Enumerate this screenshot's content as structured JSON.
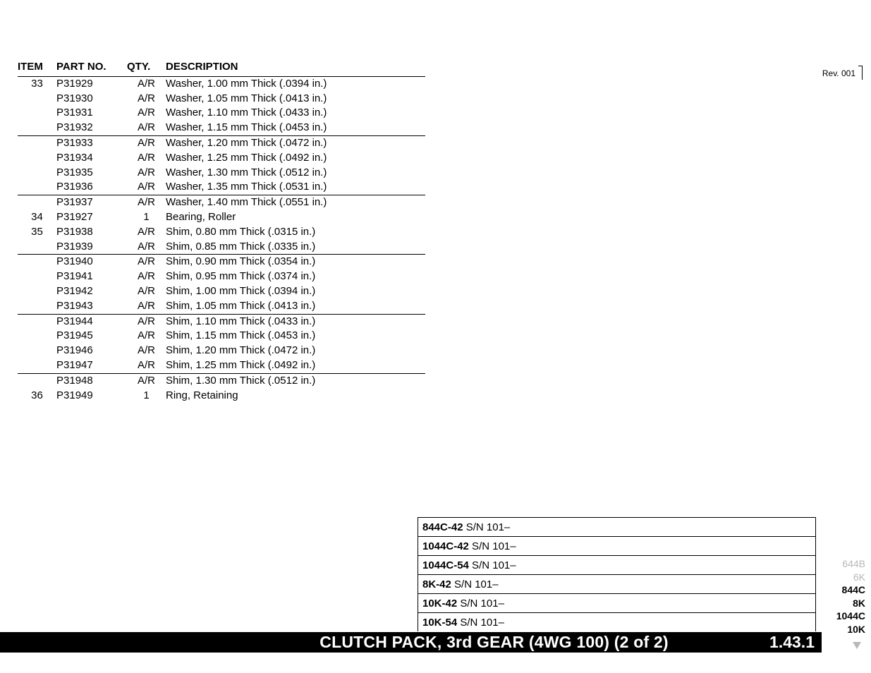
{
  "columns": {
    "item": "ITEM",
    "part": "PART NO.",
    "qty": "QTY.",
    "desc": "DESCRIPTION"
  },
  "revision": "Rev. 001",
  "groups": [
    {
      "rows": [
        {
          "item": "33",
          "part": "P31929",
          "qty": "A/R",
          "desc": "Washer, 1.00 mm Thick   (.0394 in.)"
        },
        {
          "item": "",
          "part": "P31930",
          "qty": "A/R",
          "desc": "Washer, 1.05 mm Thick   (.0413 in.)"
        },
        {
          "item": "",
          "part": "P31931",
          "qty": "A/R",
          "desc": "Washer, 1.10 mm Thick   (.0433 in.)"
        },
        {
          "item": "",
          "part": "P31932",
          "qty": "A/R",
          "desc": "Washer, 1.15 mm Thick   (.0453 in.)"
        }
      ]
    },
    {
      "rows": [
        {
          "item": "",
          "part": "P31933",
          "qty": "A/R",
          "desc": "Washer, 1.20 mm Thick   (.0472 in.)"
        },
        {
          "item": "",
          "part": "P31934",
          "qty": "A/R",
          "desc": "Washer, 1.25 mm Thick   (.0492 in.)"
        },
        {
          "item": "",
          "part": "P31935",
          "qty": "A/R",
          "desc": "Washer, 1.30 mm Thick   (.0512 in.)"
        },
        {
          "item": "",
          "part": "P31936",
          "qty": "A/R",
          "desc": "Washer, 1.35 mm Thick   (.0531 in.)"
        }
      ]
    },
    {
      "rows": [
        {
          "item": "",
          "part": "P31937",
          "qty": "A/R",
          "desc": "Washer, 1.40 mm Thick   (.0551 in.)"
        },
        {
          "item": "34",
          "part": "P31927",
          "qty": "1",
          "desc": "Bearing, Roller"
        },
        {
          "item": "35",
          "part": "P31938",
          "qty": "A/R",
          "desc": "Shim, 0.80 mm Thick   (.0315 in.)"
        },
        {
          "item": "",
          "part": "P31939",
          "qty": "A/R",
          "desc": "Shim, 0.85 mm Thick   (.0335 in.)"
        }
      ]
    },
    {
      "rows": [
        {
          "item": "",
          "part": "P31940",
          "qty": "A/R",
          "desc": "Shim, 0.90 mm Thick   (.0354 in.)"
        },
        {
          "item": "",
          "part": "P31941",
          "qty": "A/R",
          "desc": "Shim, 0.95 mm Thick   (.0374 in.)"
        },
        {
          "item": "",
          "part": "P31942",
          "qty": "A/R",
          "desc": "Shim, 1.00 mm Thick   (.0394 in.)"
        },
        {
          "item": "",
          "part": "P31943",
          "qty": "A/R",
          "desc": "Shim, 1.05 mm Thick   (.0413 in.)"
        }
      ]
    },
    {
      "rows": [
        {
          "item": "",
          "part": "P31944",
          "qty": "A/R",
          "desc": "Shim, 1.10 mm Thick   (.0433 in.)"
        },
        {
          "item": "",
          "part": "P31945",
          "qty": "A/R",
          "desc": "Shim, 1.15 mm Thick   (.0453 in.)"
        },
        {
          "item": "",
          "part": "P31946",
          "qty": "A/R",
          "desc": "Shim, 1.20 mm Thick   (.0472 in.)"
        },
        {
          "item": "",
          "part": "P31947",
          "qty": "A/R",
          "desc": "Shim, 1.25 mm Thick   (.0492 in.)"
        }
      ]
    },
    {
      "rows": [
        {
          "item": "",
          "part": "P31948",
          "qty": "A/R",
          "desc": "Shim, 1.30 mm Thick   (.0512 in.)"
        },
        {
          "item": "36",
          "part": "P31949",
          "qty": "1",
          "desc": "Ring, Retaining"
        }
      ],
      "noBottomBorder": true
    }
  ],
  "serials": [
    {
      "model": "844C-42",
      "sn": "S/N 101–"
    },
    {
      "model": "1044C-42",
      "sn": "S/N 101–"
    },
    {
      "model": "1044C-54",
      "sn": "S/N 101–"
    },
    {
      "model": "8K-42",
      "sn": "S/N 101–"
    },
    {
      "model": "10K-42",
      "sn": "S/N 101–"
    },
    {
      "model": "10K-54",
      "sn": "S/N 101–"
    }
  ],
  "footer": {
    "title": "CLUTCH PACK, 3rd GEAR (4WG 100) (2 of 2)",
    "code": "1.43.1"
  },
  "modelTabs": [
    {
      "label": "644B",
      "active": false
    },
    {
      "label": "6K",
      "active": false
    },
    {
      "label": "844C",
      "active": true
    },
    {
      "label": "8K",
      "active": true
    },
    {
      "label": "1044C",
      "active": true
    },
    {
      "label": "10K",
      "active": true
    }
  ]
}
